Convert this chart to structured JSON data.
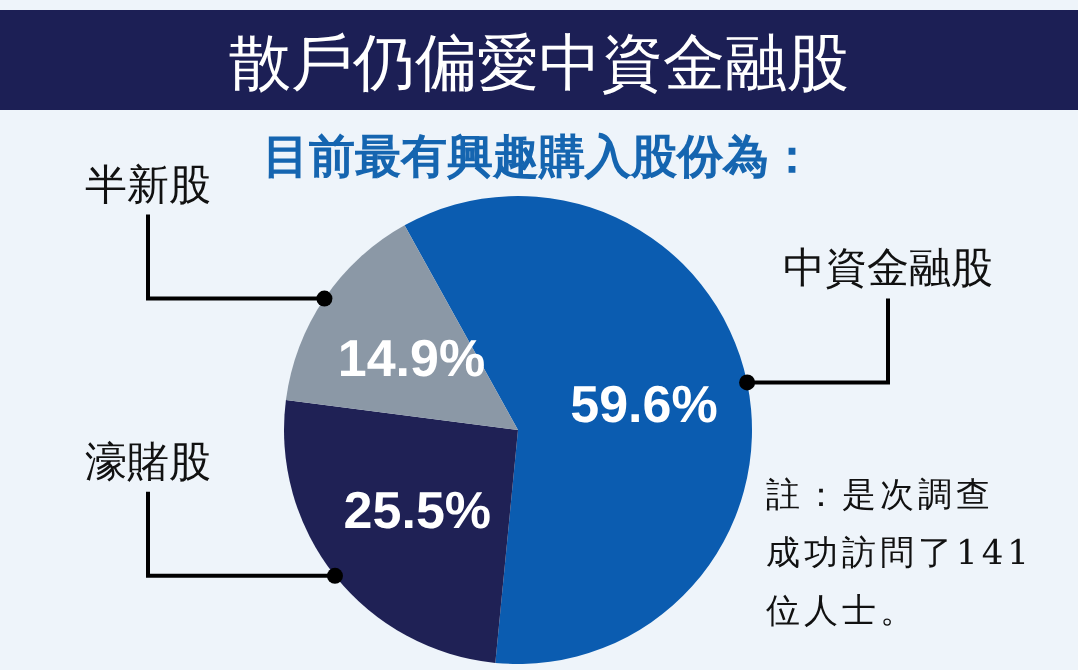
{
  "chart_data": {
    "type": "pie",
    "title": "散戶仍偏愛中資金融股",
    "subtitle": "目前最有興趣購入股份為：",
    "categories": [
      "中資金融股",
      "濠賭股",
      "半新股"
    ],
    "values": [
      59.6,
      25.5,
      14.9
    ],
    "value_labels": [
      "59.6%",
      "25.5%",
      "14.9%"
    ],
    "colors": [
      "#0b5cb0",
      "#1f2155",
      "#8b98a6"
    ],
    "annotations": [
      "註：是次調查成功訪問了141位人士。"
    ]
  }
}
